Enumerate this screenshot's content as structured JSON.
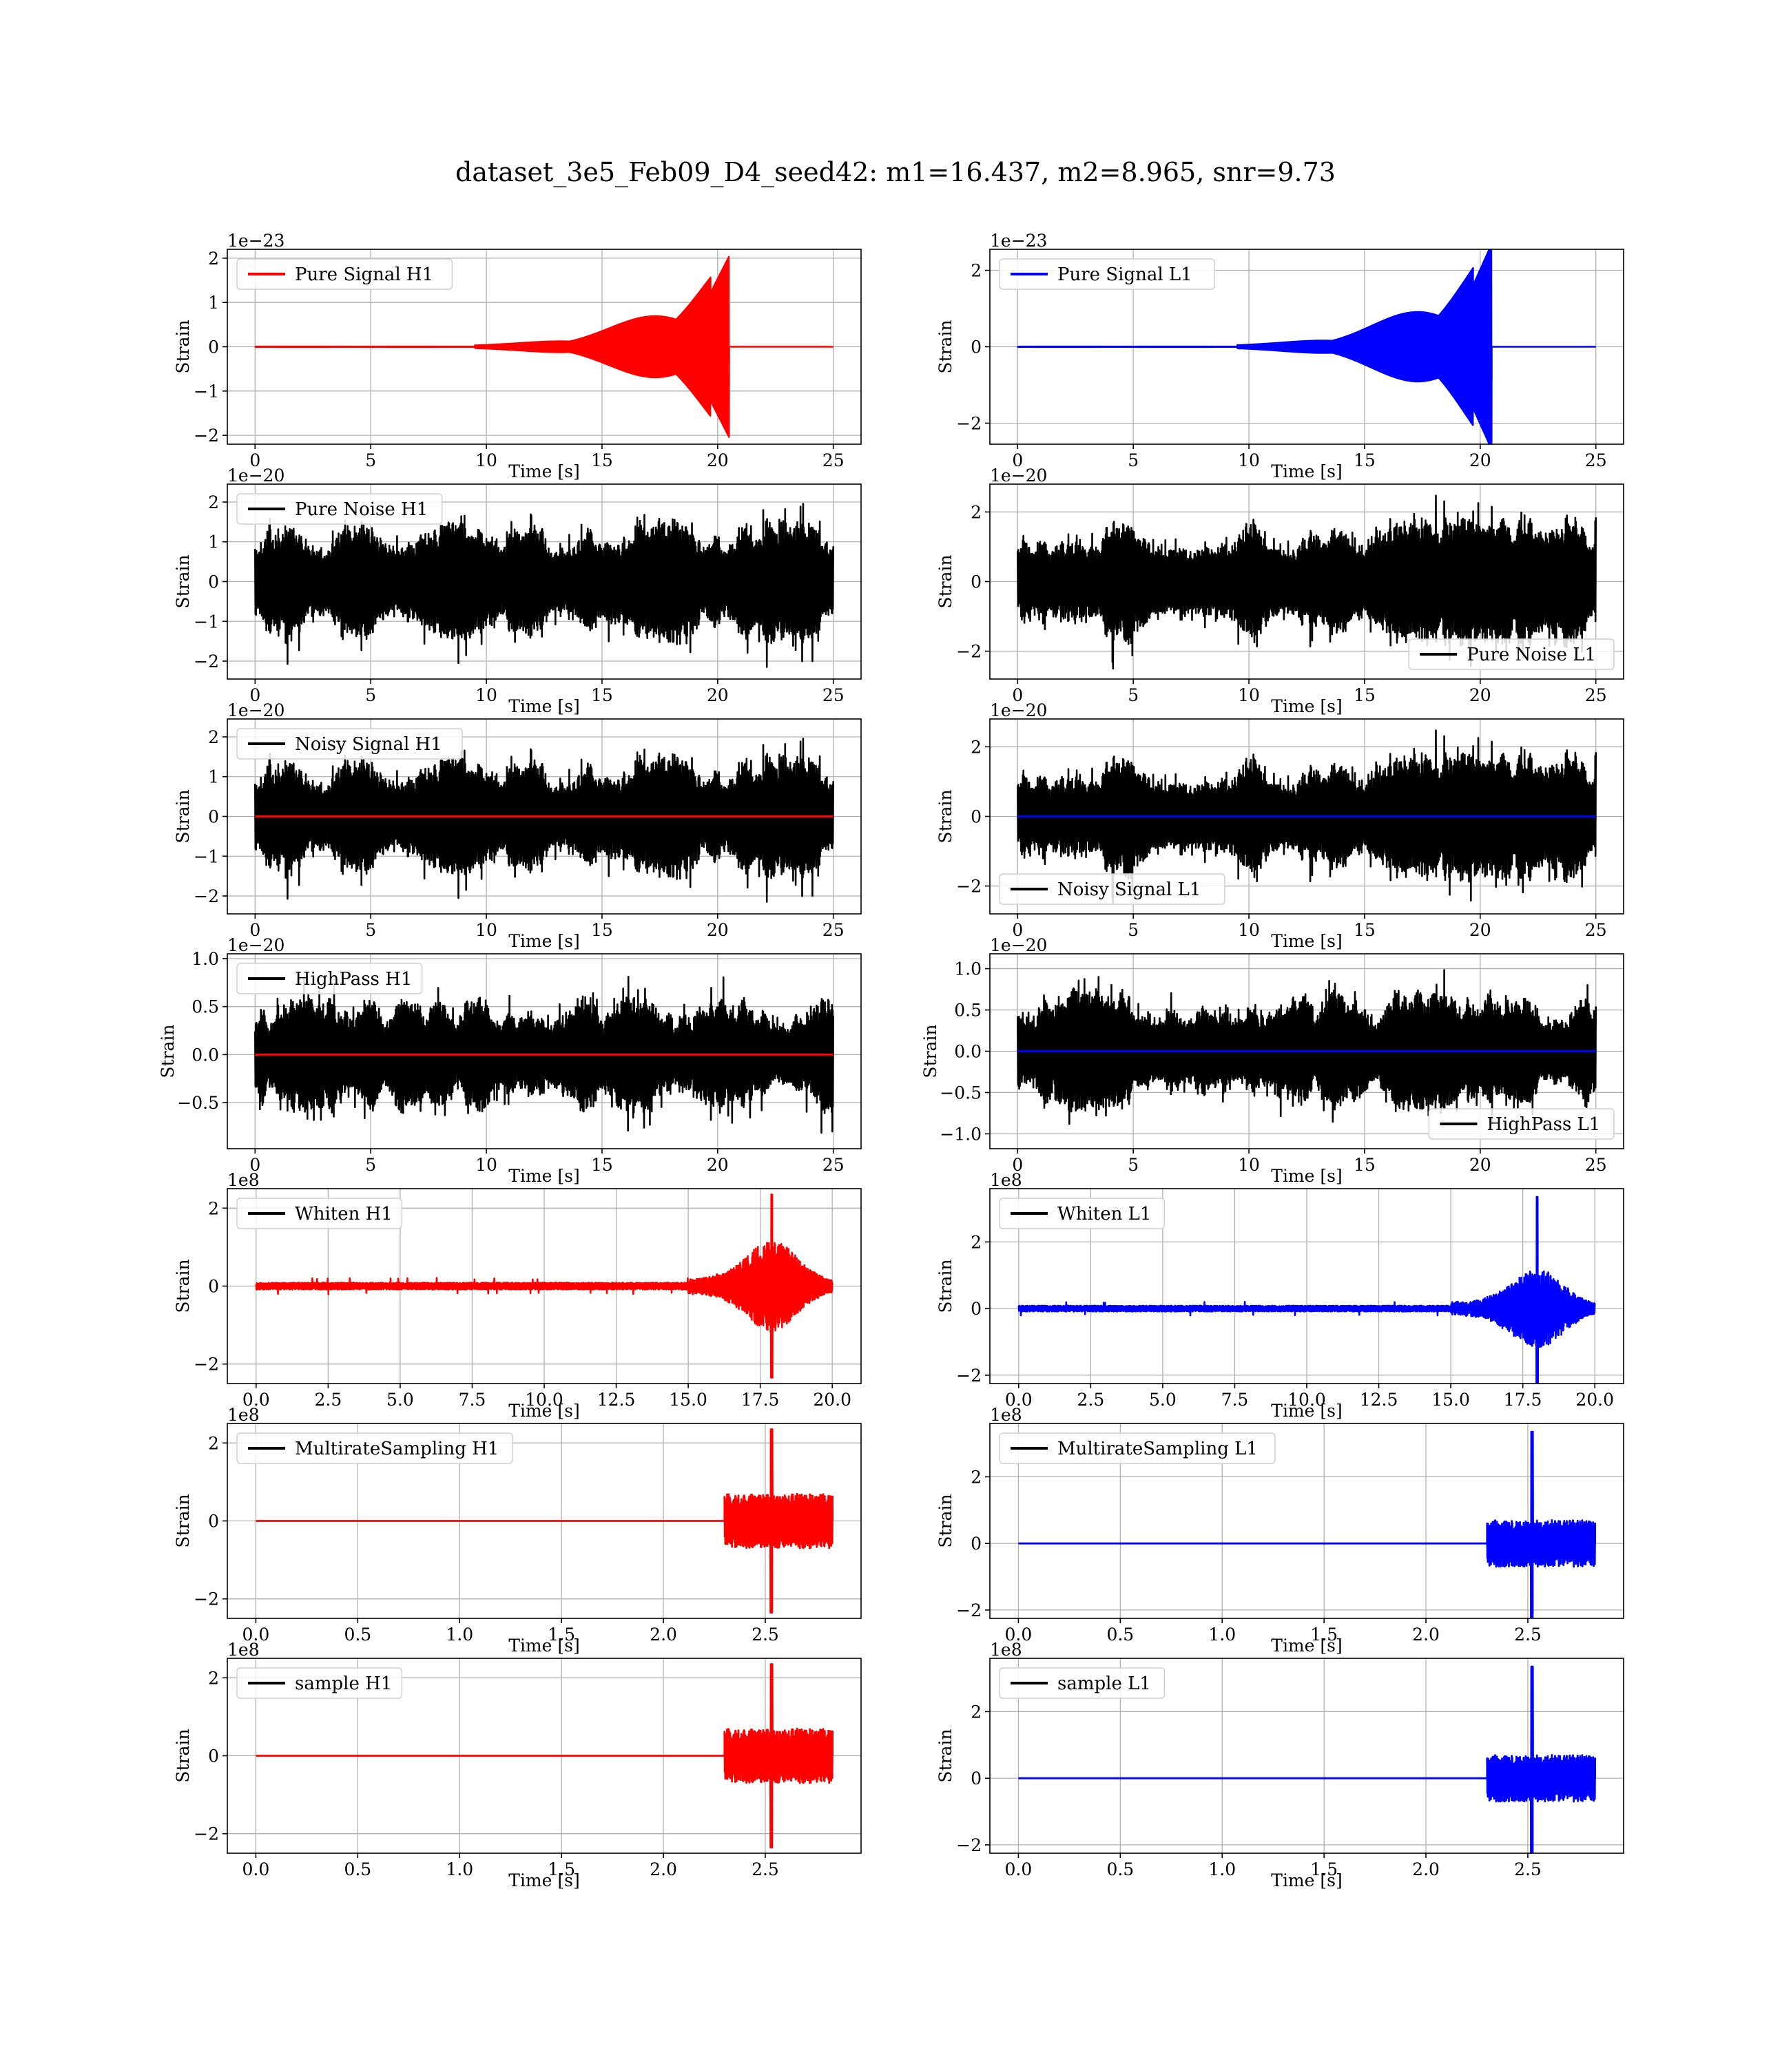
{
  "suptitle": "dataset_3e5_Feb09_D4_seed42: m1=16.437, m2=8.965, snr=9.73",
  "colors": {
    "h1_signal": "#ff0000",
    "l1_signal": "#0000ff",
    "noise": "#000000",
    "grid": "#b0b0b0"
  },
  "chart_data": [
    {
      "type": "line",
      "detector": "H1",
      "legend": "Pure Signal H1",
      "legend_loc": "upper-left",
      "signal_color": "red",
      "ylabel": "Strain",
      "xlabel": "Time [s]",
      "offset": "1e−23",
      "xlim": [
        -1.2,
        26.2
      ],
      "ylim": [
        -2.2,
        2.2
      ],
      "xticks": [
        0,
        5,
        10,
        15,
        20,
        25
      ],
      "yticks": [
        -2,
        -1,
        0,
        1,
        2
      ],
      "data_kind": "chirp",
      "x_range": [
        0,
        25
      ],
      "has_noise": false,
      "signal_amplitude": 2.05,
      "merger_time": 20.5,
      "grid": true
    },
    {
      "type": "line",
      "detector": "L1",
      "legend": "Pure Signal L1",
      "legend_loc": "upper-left",
      "signal_color": "blue",
      "ylabel": "Strain",
      "xlabel": "Time [s]",
      "offset": "1e−23",
      "xlim": [
        -1.2,
        26.2
      ],
      "ylim": [
        -2.55,
        2.55
      ],
      "xticks": [
        0,
        5,
        10,
        15,
        20,
        25
      ],
      "yticks": [
        -2,
        0,
        2
      ],
      "data_kind": "chirp",
      "x_range": [
        0,
        25
      ],
      "has_noise": false,
      "signal_amplitude": 2.7,
      "merger_time": 20.5,
      "grid": true
    },
    {
      "type": "line",
      "detector": "H1",
      "legend": "Pure Noise H1",
      "legend_loc": "upper-left",
      "signal_color": "black",
      "ylabel": "Strain",
      "xlabel": "Time [s]",
      "offset": "1e−20",
      "xlim": [
        -1.2,
        26.2
      ],
      "ylim": [
        -2.45,
        2.45
      ],
      "xticks": [
        0,
        5,
        10,
        15,
        20,
        25
      ],
      "yticks": [
        -2,
        -1,
        0,
        1,
        2
      ],
      "data_kind": "noise",
      "x_range": [
        0,
        25
      ],
      "has_noise": true,
      "noise_amplitude": 2.2,
      "seed": 11,
      "grid": true
    },
    {
      "type": "line",
      "detector": "L1",
      "legend": "Pure Noise L1",
      "legend_loc": "lower-right",
      "signal_color": "black",
      "ylabel": "Strain",
      "xlabel": "Time [s]",
      "offset": "1e−20",
      "xlim": [
        -1.2,
        26.2
      ],
      "ylim": [
        -2.8,
        2.8
      ],
      "xticks": [
        0,
        5,
        10,
        15,
        20,
        25
      ],
      "yticks": [
        -2,
        0,
        2
      ],
      "data_kind": "noise",
      "x_range": [
        0,
        25
      ],
      "has_noise": true,
      "noise_amplitude": 2.55,
      "seed": 23,
      "grid": true
    },
    {
      "type": "line",
      "detector": "H1",
      "legend": "Noisy Signal H1",
      "legend_loc": "upper-left",
      "signal_color": "red",
      "ylabel": "Strain",
      "xlabel": "Time [s]",
      "offset": "1e−20",
      "xlim": [
        -1.2,
        26.2
      ],
      "ylim": [
        -2.45,
        2.45
      ],
      "xticks": [
        0,
        5,
        10,
        15,
        20,
        25
      ],
      "yticks": [
        -2,
        -1,
        0,
        1,
        2
      ],
      "data_kind": "noise+flat",
      "x_range": [
        0,
        25
      ],
      "has_noise": true,
      "noise_amplitude": 2.2,
      "seed": 11,
      "grid": true
    },
    {
      "type": "line",
      "detector": "L1",
      "legend": "Noisy Signal L1",
      "legend_loc": "lower-left",
      "signal_color": "blue",
      "ylabel": "Strain",
      "xlabel": "Time [s]",
      "offset": "1e−20",
      "xlim": [
        -1.2,
        26.2
      ],
      "ylim": [
        -2.8,
        2.8
      ],
      "xticks": [
        0,
        5,
        10,
        15,
        20,
        25
      ],
      "yticks": [
        -2,
        0,
        2
      ],
      "data_kind": "noise+flat",
      "x_range": [
        0,
        25
      ],
      "has_noise": true,
      "noise_amplitude": 2.55,
      "seed": 23,
      "grid": true
    },
    {
      "type": "line",
      "detector": "H1",
      "legend": "HighPass H1",
      "legend_loc": "upper-left",
      "signal_color": "red",
      "ylabel": "Strain",
      "xlabel": "Time [s]",
      "offset": "1e−20",
      "xlim": [
        -1.2,
        26.2
      ],
      "ylim": [
        -0.98,
        1.05
      ],
      "xticks": [
        0,
        5,
        10,
        15,
        20,
        25
      ],
      "yticks": [
        -0.5,
        0.0,
        0.5,
        1.0
      ],
      "ytick_decimals": 1,
      "data_kind": "noise+flat",
      "x_range": [
        0,
        25
      ],
      "has_noise": true,
      "noise_amplitude": 0.85,
      "seed": 37,
      "grid": true
    },
    {
      "type": "line",
      "detector": "L1",
      "legend": "HighPass L1",
      "legend_loc": "lower-right",
      "signal_color": "blue",
      "ylabel": "Strain",
      "xlabel": "Time [s]",
      "offset": "1e−20",
      "xlim": [
        -1.2,
        26.2
      ],
      "ylim": [
        -1.18,
        1.18
      ],
      "xticks": [
        0,
        5,
        10,
        15,
        20,
        25
      ],
      "yticks": [
        -1.0,
        -0.5,
        0.0,
        0.5,
        1.0
      ],
      "ytick_decimals": 1,
      "data_kind": "noise+flat",
      "x_range": [
        0,
        25
      ],
      "has_noise": true,
      "noise_amplitude": 1.05,
      "seed": 41,
      "grid": true
    },
    {
      "type": "line",
      "detector": "H1",
      "legend": "Whiten H1",
      "legend_loc": "upper-left",
      "signal_color": "red",
      "ylabel": "Strain",
      "xlabel": "Time [s]",
      "offset": "1e8",
      "xlim": [
        -1.0,
        21.0
      ],
      "ylim": [
        -2.5,
        2.5
      ],
      "xticks": [
        0.0,
        2.5,
        5.0,
        7.5,
        10.0,
        12.5,
        15.0,
        17.5,
        20.0
      ],
      "xtick_decimals": 1,
      "yticks": [
        -2,
        0,
        2
      ],
      "data_kind": "whiten",
      "x_range": [
        0,
        20
      ],
      "burst_center": 17.9,
      "peak": 2.35,
      "seed": 53,
      "grid": true
    },
    {
      "type": "line",
      "detector": "L1",
      "legend": "Whiten L1",
      "legend_loc": "upper-left",
      "signal_color": "blue",
      "ylabel": "Strain",
      "xlabel": "Time [s]",
      "offset": "1e8",
      "xlim": [
        -1.0,
        21.0
      ],
      "ylim": [
        -2.25,
        3.6
      ],
      "xticks": [
        0.0,
        2.5,
        5.0,
        7.5,
        10.0,
        12.5,
        15.0,
        17.5,
        20.0
      ],
      "xtick_decimals": 1,
      "yticks": [
        -2,
        0,
        2
      ],
      "data_kind": "whiten",
      "x_range": [
        0,
        20
      ],
      "burst_center": 18.0,
      "peak": 3.35,
      "seed": 67,
      "grid": true
    },
    {
      "type": "line",
      "detector": "H1",
      "legend": "MultirateSampling H1",
      "legend_loc": "upper-left",
      "signal_color": "red",
      "ylabel": "Strain",
      "xlabel": "Time [s]",
      "offset": "1e8",
      "xlim": [
        -0.14,
        2.97
      ],
      "ylim": [
        -2.5,
        2.5
      ],
      "xticks": [
        0.0,
        0.5,
        1.0,
        1.5,
        2.0,
        2.5
      ],
      "xtick_decimals": 1,
      "yticks": [
        -2,
        0,
        2
      ],
      "data_kind": "multirate",
      "x_range": [
        0,
        2.83
      ],
      "burst_start": 2.3,
      "burst_center": 2.53,
      "peak": 2.35,
      "seed": 71,
      "grid": true
    },
    {
      "type": "line",
      "detector": "L1",
      "legend": "MultirateSampling L1",
      "legend_loc": "upper-left",
      "signal_color": "blue",
      "ylabel": "Strain",
      "xlabel": "Time [s]",
      "offset": "1e8",
      "xlim": [
        -0.14,
        2.97
      ],
      "ylim": [
        -2.25,
        3.6
      ],
      "xticks": [
        0.0,
        0.5,
        1.0,
        1.5,
        2.0,
        2.5
      ],
      "xtick_decimals": 1,
      "yticks": [
        -2,
        0,
        2
      ],
      "data_kind": "multirate",
      "x_range": [
        0,
        2.83
      ],
      "burst_start": 2.3,
      "burst_center": 2.52,
      "peak": 3.35,
      "seed": 83,
      "grid": true
    },
    {
      "type": "line",
      "detector": "H1",
      "legend": "sample H1",
      "legend_loc": "upper-left",
      "signal_color": "red",
      "ylabel": "Strain",
      "xlabel": "Time [s]",
      "offset": "1e8",
      "xlim": [
        -0.14,
        2.97
      ],
      "ylim": [
        -2.5,
        2.5
      ],
      "xticks": [
        0.0,
        0.5,
        1.0,
        1.5,
        2.0,
        2.5
      ],
      "xtick_decimals": 1,
      "yticks": [
        -2,
        0,
        2
      ],
      "data_kind": "multirate",
      "x_range": [
        0,
        2.83
      ],
      "burst_start": 2.3,
      "burst_center": 2.53,
      "peak": 2.35,
      "seed": 71,
      "grid": true
    },
    {
      "type": "line",
      "detector": "L1",
      "legend": "sample L1",
      "legend_loc": "upper-left",
      "signal_color": "blue",
      "ylabel": "Strain",
      "xlabel": "Time [s]",
      "offset": "1e8",
      "xlim": [
        -0.14,
        2.97
      ],
      "ylim": [
        -2.25,
        3.6
      ],
      "xticks": [
        0.0,
        0.5,
        1.0,
        1.5,
        2.0,
        2.5
      ],
      "xtick_decimals": 1,
      "yticks": [
        -2,
        0,
        2
      ],
      "data_kind": "multirate",
      "x_range": [
        0,
        2.83
      ],
      "burst_start": 2.3,
      "burst_center": 2.52,
      "peak": 3.35,
      "seed": 83,
      "grid": true
    }
  ]
}
